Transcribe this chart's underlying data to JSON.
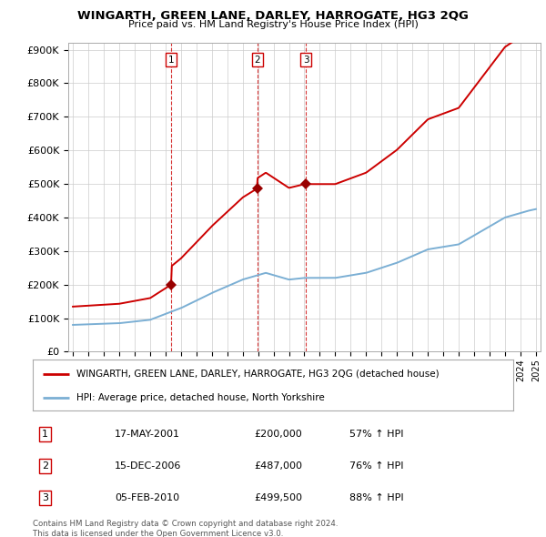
{
  "title": "WINGARTH, GREEN LANE, DARLEY, HARROGATE, HG3 2QG",
  "subtitle": "Price paid vs. HM Land Registry's House Price Index (HPI)",
  "ylabel_ticks": [
    "£0",
    "£100K",
    "£200K",
    "£300K",
    "£400K",
    "£500K",
    "£600K",
    "£700K",
    "£800K",
    "£900K"
  ],
  "ytick_values": [
    0,
    100000,
    200000,
    300000,
    400000,
    500000,
    600000,
    700000,
    800000,
    900000
  ],
  "ylim": [
    0,
    920000
  ],
  "xlim_start": 1994.7,
  "xlim_end": 2025.3,
  "red_line_color": "#cc0000",
  "blue_line_color": "#7bafd4",
  "sale_marker_color": "#990000",
  "dashed_line_color": "#cc0000",
  "sales": [
    {
      "date_num": 2001.37,
      "price": 200000,
      "label": "1"
    },
    {
      "date_num": 2006.96,
      "price": 487000,
      "label": "2"
    },
    {
      "date_num": 2010.09,
      "price": 499500,
      "label": "3"
    }
  ],
  "legend_entries": [
    {
      "label": "WINGARTH, GREEN LANE, DARLEY, HARROGATE, HG3 2QG (detached house)",
      "color": "#cc0000"
    },
    {
      "label": "HPI: Average price, detached house, North Yorkshire",
      "color": "#7bafd4"
    }
  ],
  "table_rows": [
    {
      "num": "1",
      "date": "17-MAY-2001",
      "price": "£200,000",
      "hpi": "57% ↑ HPI"
    },
    {
      "num": "2",
      "date": "15-DEC-2006",
      "price": "£487,000",
      "hpi": "76% ↑ HPI"
    },
    {
      "num": "3",
      "date": "05-FEB-2010",
      "price": "£499,500",
      "hpi": "88% ↑ HPI"
    }
  ],
  "footer": "Contains HM Land Registry data © Crown copyright and database right 2024.\nThis data is licensed under the Open Government Licence v3.0.",
  "background_color": "#ffffff",
  "grid_color": "#cccccc"
}
